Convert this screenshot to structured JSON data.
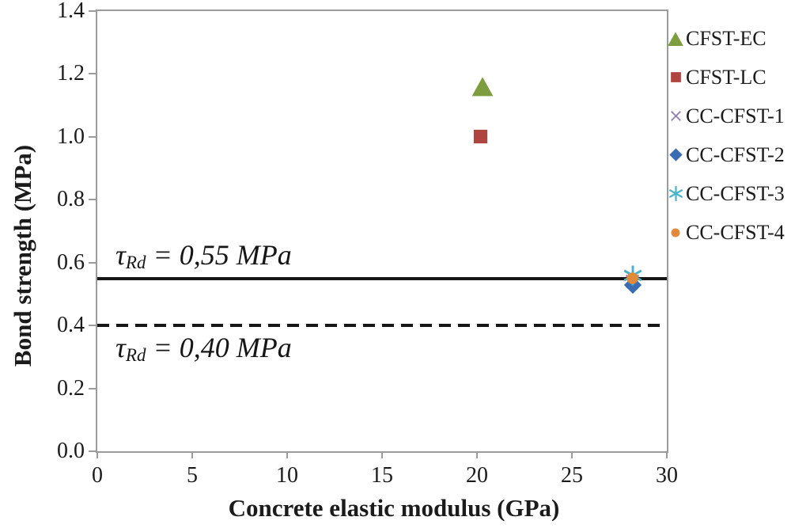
{
  "figure": {
    "background": "#ffffff"
  },
  "chart_data": {
    "type": "scatter",
    "title": "",
    "xlabel": "Concrete elastic modulus (GPa)",
    "ylabel": "Bond strength (MPa)",
    "xlim": [
      0,
      30
    ],
    "ylim": [
      0.0,
      1.4
    ],
    "grid": false,
    "legend_position": "outside-right",
    "xticks": {
      "values": [
        0,
        5,
        10,
        15,
        20,
        25,
        30
      ],
      "labels": [
        "0",
        "5",
        "10",
        "15",
        "20",
        "25",
        "30"
      ]
    },
    "yticks": {
      "values": [
        0.0,
        0.2,
        0.4,
        0.6,
        0.8,
        1.0,
        1.2,
        1.4
      ],
      "labels": [
        "0.0",
        "0.2",
        "0.4",
        "0.6",
        "0.8",
        "1.0",
        "1.2",
        "1.4"
      ]
    },
    "series": [
      {
        "name": "CFST-EC",
        "marker": "triangle",
        "color": "#7e9d40",
        "points": [
          [
            20.3,
            1.16
          ]
        ]
      },
      {
        "name": "CFST-LC",
        "marker": "square",
        "color": "#ae4340",
        "points": [
          [
            20.2,
            1.0
          ]
        ]
      },
      {
        "name": "CC-CFST-1",
        "marker": "cross",
        "color": "#8f7dba",
        "points": [
          [
            28.2,
            0.54
          ]
        ]
      },
      {
        "name": "CC-CFST-2",
        "marker": "diamond",
        "color": "#3a6cb3",
        "points": [
          [
            28.2,
            0.53
          ]
        ]
      },
      {
        "name": "CC-CFST-3",
        "marker": "asterisk",
        "color": "#4bb3c9",
        "points": [
          [
            28.2,
            0.56
          ]
        ]
      },
      {
        "name": "CC-CFST-4",
        "marker": "circle",
        "color": "#e2893a",
        "points": [
          [
            28.2,
            0.55
          ]
        ]
      }
    ],
    "reference_lines": [
      {
        "style": "solid",
        "value": 0.55,
        "label": {
          "symbol": "τ",
          "subscript": "Rd",
          "text": " = 0,55 MPa"
        }
      },
      {
        "style": "dashed",
        "value": 0.4,
        "label": {
          "symbol": "τ",
          "subscript": "Rd",
          "text": " = 0,40 MPa"
        }
      }
    ],
    "colors": {
      "axis": "#9b9b9b",
      "text": "#1b1b1b",
      "line": "#161616"
    }
  }
}
